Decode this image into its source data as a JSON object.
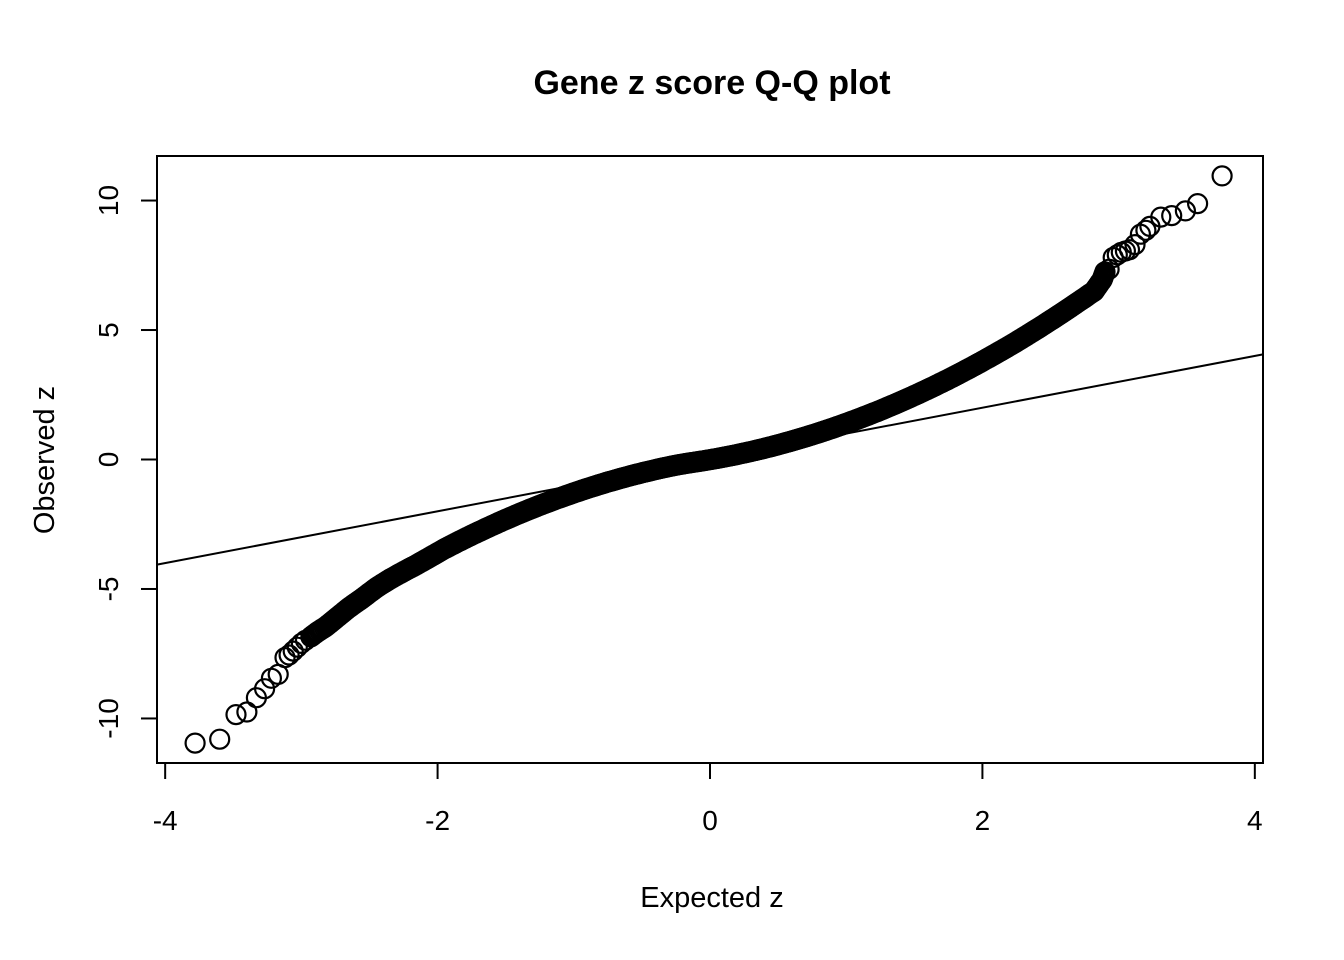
{
  "figure": {
    "background": "#ffffff",
    "foreground": "#000000"
  },
  "chart_data": {
    "type": "scatter",
    "title": "Gene z score Q-Q plot",
    "xlabel": "Expected z",
    "ylabel": "Observed z",
    "xlim": [
      -4.06,
      4.06
    ],
    "ylim": [
      -11.72,
      11.72
    ],
    "x_ticks": [
      -4,
      -2,
      0,
      2,
      4
    ],
    "y_ticks": [
      -10,
      -5,
      0,
      5,
      10
    ],
    "grid": false,
    "legend": "none",
    "marker": "open-circle",
    "marker_color": "#000000",
    "reference_line": {
      "intercept": 0,
      "slope": 1,
      "color": "#000000"
    },
    "points": [
      [
        -3.78,
        -10.95
      ],
      [
        -3.6,
        -10.8
      ],
      [
        -3.48,
        -9.85
      ],
      [
        -3.4,
        -9.75
      ],
      [
        -3.33,
        -9.2
      ],
      [
        -3.27,
        -8.85
      ],
      [
        -3.22,
        -8.45
      ],
      [
        -3.17,
        -8.3
      ],
      [
        -3.12,
        -7.65
      ],
      [
        -3.09,
        -7.55
      ],
      [
        -3.06,
        -7.4
      ],
      [
        -3.03,
        -7.25
      ],
      [
        -3.0,
        -7.1
      ],
      [
        -2.97,
        -6.98
      ],
      [
        -2.93,
        -6.85
      ],
      [
        -2.88,
        -6.65
      ],
      [
        -2.82,
        -6.45
      ],
      [
        -2.75,
        -6.15
      ],
      [
        -2.65,
        -5.72
      ],
      [
        -2.55,
        -5.35
      ],
      [
        -2.45,
        -4.95
      ],
      [
        -2.35,
        -4.62
      ],
      [
        -2.25,
        -4.33
      ],
      [
        -2.15,
        -4.05
      ],
      [
        -2.05,
        -3.75
      ],
      [
        -1.95,
        -3.45
      ],
      [
        -1.85,
        -3.18
      ],
      [
        -1.75,
        -2.92
      ],
      [
        -1.65,
        -2.67
      ],
      [
        -1.55,
        -2.43
      ],
      [
        -1.45,
        -2.2
      ],
      [
        -1.35,
        -1.98
      ],
      [
        -1.25,
        -1.77
      ],
      [
        -1.15,
        -1.57
      ],
      [
        -1.05,
        -1.38
      ],
      [
        -0.95,
        -1.2
      ],
      [
        -0.85,
        -1.03
      ],
      [
        -0.75,
        -0.87
      ],
      [
        -0.65,
        -0.72
      ],
      [
        -0.55,
        -0.58
      ],
      [
        -0.45,
        -0.45
      ],
      [
        -0.35,
        -0.33
      ],
      [
        -0.25,
        -0.22
      ],
      [
        -0.15,
        -0.13
      ],
      [
        -0.05,
        -0.05
      ],
      [
        0.05,
        0.04
      ],
      [
        0.15,
        0.14
      ],
      [
        0.25,
        0.25
      ],
      [
        0.35,
        0.37
      ],
      [
        0.45,
        0.5
      ],
      [
        0.55,
        0.64
      ],
      [
        0.65,
        0.79
      ],
      [
        0.75,
        0.95
      ],
      [
        0.85,
        1.12
      ],
      [
        0.95,
        1.3
      ],
      [
        1.05,
        1.49
      ],
      [
        1.15,
        1.69
      ],
      [
        1.25,
        1.9
      ],
      [
        1.35,
        2.12
      ],
      [
        1.45,
        2.35
      ],
      [
        1.55,
        2.59
      ],
      [
        1.65,
        2.84
      ],
      [
        1.75,
        3.1
      ],
      [
        1.85,
        3.37
      ],
      [
        1.95,
        3.65
      ],
      [
        2.05,
        3.94
      ],
      [
        2.15,
        4.24
      ],
      [
        2.25,
        4.55
      ],
      [
        2.35,
        4.87
      ],
      [
        2.45,
        5.2
      ],
      [
        2.55,
        5.54
      ],
      [
        2.65,
        5.89
      ],
      [
        2.75,
        6.25
      ],
      [
        2.82,
        6.5
      ],
      [
        2.88,
        6.95
      ],
      [
        2.9,
        7.25
      ],
      [
        2.93,
        7.35
      ],
      [
        2.96,
        7.8
      ],
      [
        2.99,
        7.9
      ],
      [
        3.02,
        8.0
      ],
      [
        3.05,
        8.05
      ],
      [
        3.08,
        8.1
      ],
      [
        3.12,
        8.3
      ],
      [
        3.16,
        8.7
      ],
      [
        3.2,
        8.85
      ],
      [
        3.23,
        9.0
      ],
      [
        3.31,
        9.36
      ],
      [
        3.39,
        9.42
      ],
      [
        3.49,
        9.6
      ],
      [
        3.58,
        9.88
      ],
      [
        3.76,
        10.95
      ]
    ]
  }
}
